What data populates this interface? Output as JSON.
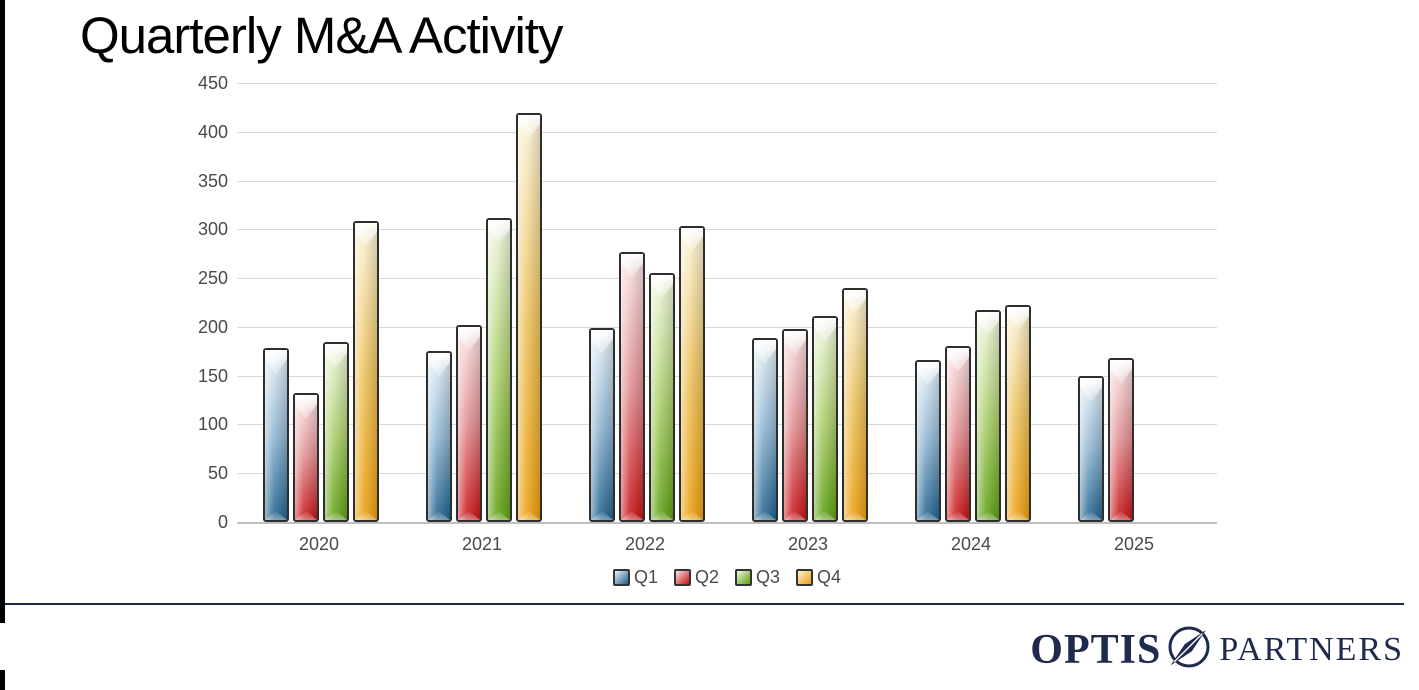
{
  "title": "Quarterly M&A Activity",
  "chart_data": {
    "type": "bar",
    "title": "Quarterly M&A Activity",
    "categories": [
      "2020",
      "2021",
      "2022",
      "2023",
      "2024",
      "2025"
    ],
    "series": [
      {
        "name": "Q1",
        "values": [
          178,
          175,
          199,
          189,
          166,
          150
        ],
        "colors": {
          "light": "#e6f0f7",
          "mid": "#90b6d2",
          "dark": "#1f618d"
        }
      },
      {
        "name": "Q2",
        "values": [
          132,
          202,
          277,
          198,
          180,
          168
        ],
        "colors": {
          "light": "#f9e4e4",
          "mid": "#e18f92",
          "dark": "#c81215"
        }
      },
      {
        "name": "Q3",
        "values": [
          185,
          312,
          255,
          211,
          217,
          null
        ],
        "colors": {
          "light": "#eff6df",
          "mid": "#aed06f",
          "dark": "#5ea012"
        }
      },
      {
        "name": "Q4",
        "values": [
          309,
          419,
          303,
          240,
          222,
          null
        ],
        "colors": {
          "light": "#faf2d7",
          "mid": "#ecc25e",
          "dark": "#ec9f0e"
        }
      }
    ],
    "xlabel": "",
    "ylabel": "",
    "ylim": [
      0,
      450
    ],
    "yticks": [
      0,
      50,
      100,
      150,
      200,
      250,
      300,
      350,
      400,
      450
    ],
    "grid": "horizontal",
    "legend_position": "bottom"
  },
  "branding": {
    "logo_text_1": "OPTIS",
    "logo_text_2": "PARTNERS",
    "logo_color": "#20294e",
    "divider_color": "#1b2550"
  }
}
